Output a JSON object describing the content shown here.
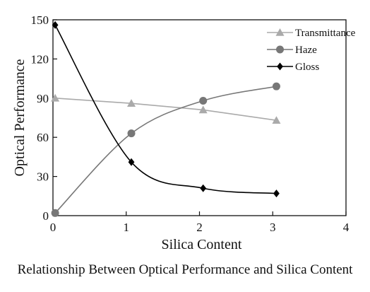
{
  "chart_data": {
    "type": "line",
    "title": "",
    "caption": "Relationship Between Optical Performance and Silica Content",
    "xlabel": "Silica Content",
    "ylabel": "Optical Performance",
    "xlim": [
      0,
      4
    ],
    "ylim": [
      0,
      150
    ],
    "xticks": [
      "0",
      "1",
      "2",
      "3",
      "4"
    ],
    "yticks": [
      "0",
      "30",
      "60",
      "90",
      "120",
      "150"
    ],
    "grid": false,
    "legend_position": "top-right",
    "x": [
      0.03,
      1.07,
      2.05,
      3.05
    ],
    "series": [
      {
        "name": "Transmittance",
        "values": [
          90,
          86,
          81,
          73
        ],
        "color": "#aaaaaa",
        "marker": "triangle",
        "smooth": false
      },
      {
        "name": "Haze",
        "values": [
          2,
          63,
          88,
          99
        ],
        "color": "#777777",
        "marker": "circle",
        "smooth": true
      },
      {
        "name": "Gloss",
        "values": [
          146,
          41,
          21,
          17
        ],
        "color": "#000000",
        "marker": "diamond",
        "smooth": true
      }
    ]
  }
}
